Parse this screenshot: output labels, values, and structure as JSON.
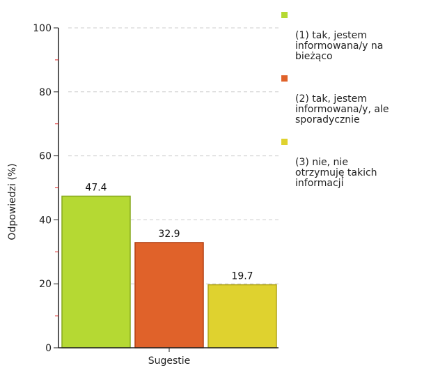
{
  "chart_data": {
    "type": "bar",
    "categories": [
      "Sugestie"
    ],
    "series": [
      {
        "name": "(1) tak, jestem\ninformowana/y na\nbieżąco",
        "values": [
          47.4
        ],
        "color": "#b5d933",
        "border": "#86a81d"
      },
      {
        "name": "(2) tak, jestem\ninformowana/y, ale\nsporadycznie",
        "values": [
          32.9
        ],
        "color": "#e0622a",
        "border": "#b23f12"
      },
      {
        "name": "(3) nie, nie\notrzymuję takich\ninformacji",
        "values": [
          19.7
        ],
        "color": "#dfd22f",
        "border": "#b0a415"
      }
    ],
    "data_labels": [
      "47.4",
      "32.9",
      "19.7"
    ],
    "xlabel": "Sugestie",
    "ylabel": "Odpowiedzi (%)",
    "ylim": [
      0,
      100
    ],
    "yticks": [
      "0",
      "20",
      "40",
      "60",
      "80",
      "100"
    ],
    "grid": true,
    "legend_position": "right"
  }
}
